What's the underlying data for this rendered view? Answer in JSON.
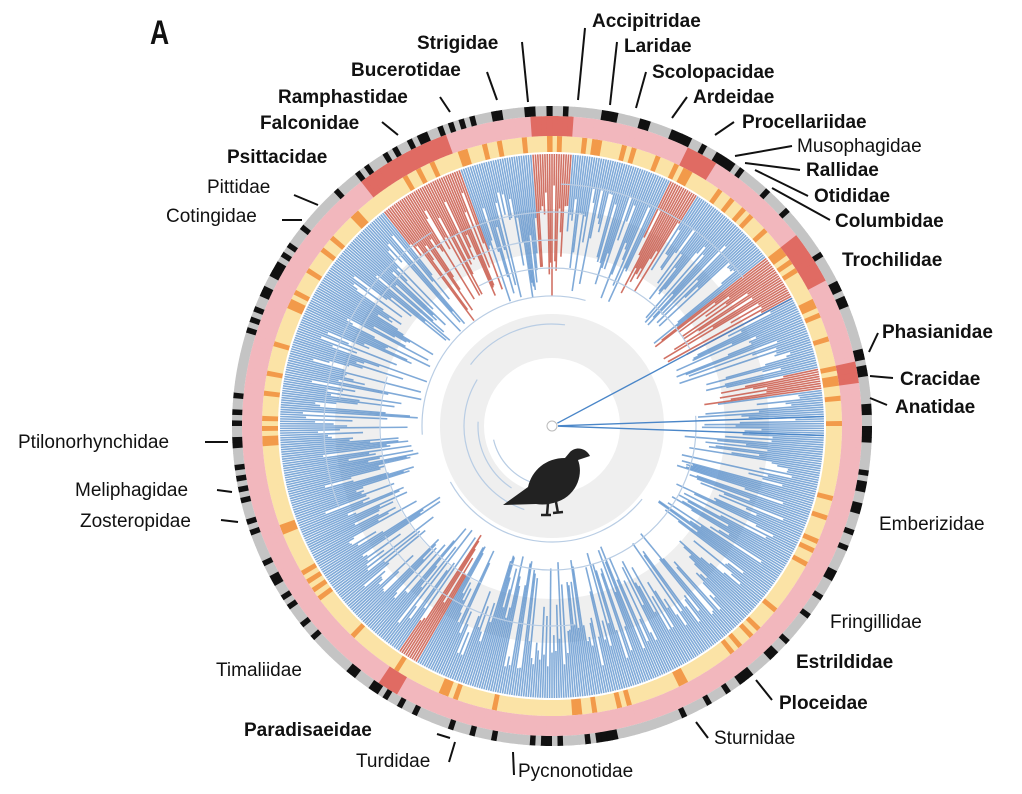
{
  "panel_letter": "A",
  "families": [
    {
      "name": "Accipitridae",
      "bold": true
    },
    {
      "name": "Laridae",
      "bold": true
    },
    {
      "name": "Strigidae",
      "bold": true
    },
    {
      "name": "Scolopacidae",
      "bold": true
    },
    {
      "name": "Bucerotidae",
      "bold": true
    },
    {
      "name": "Ardeidae",
      "bold": true
    },
    {
      "name": "Ramphastidae",
      "bold": true
    },
    {
      "name": "Procellariidae",
      "bold": true
    },
    {
      "name": "Falconidae",
      "bold": true
    },
    {
      "name": "Musophagidae",
      "bold": false
    },
    {
      "name": "Rallidae",
      "bold": true
    },
    {
      "name": "Psittacidae",
      "bold": true
    },
    {
      "name": "Otididae",
      "bold": true
    },
    {
      "name": "Pittidae",
      "bold": false
    },
    {
      "name": "Columbidae",
      "bold": true
    },
    {
      "name": "Cotingidae",
      "bold": false
    },
    {
      "name": "Trochilidae",
      "bold": true
    },
    {
      "name": "Phasianidae",
      "bold": true
    },
    {
      "name": "Cracidae",
      "bold": true
    },
    {
      "name": "Anatidae",
      "bold": true
    },
    {
      "name": "Ptilonorhynchidae",
      "bold": false
    },
    {
      "name": "Meliphagidae",
      "bold": false
    },
    {
      "name": "Zosteropidae",
      "bold": false
    },
    {
      "name": "Emberizidae",
      "bold": false
    },
    {
      "name": "Fringillidae",
      "bold": false
    },
    {
      "name": "Timaliidae",
      "bold": false
    },
    {
      "name": "Estrildidae",
      "bold": true
    },
    {
      "name": "Ploceidae",
      "bold": true
    },
    {
      "name": "Paradisaeidae",
      "bold": true
    },
    {
      "name": "Sturnidae",
      "bold": false
    },
    {
      "name": "Turdidae",
      "bold": false
    },
    {
      "name": "Pycnonotidae",
      "bold": false
    }
  ],
  "colors": {
    "branch_blue": "#4a86c8",
    "branch_red": "#c9594a",
    "ring_pink": "#f2b7bd",
    "ring_red": "#e06b63",
    "ring_yellow": "#fbe3a6",
    "ring_orange": "#f29a4a",
    "outer_grey": "#c4c4c4",
    "outer_black": "#111111",
    "background_disc": "#eeeeee",
    "bird": "#222222"
  }
}
